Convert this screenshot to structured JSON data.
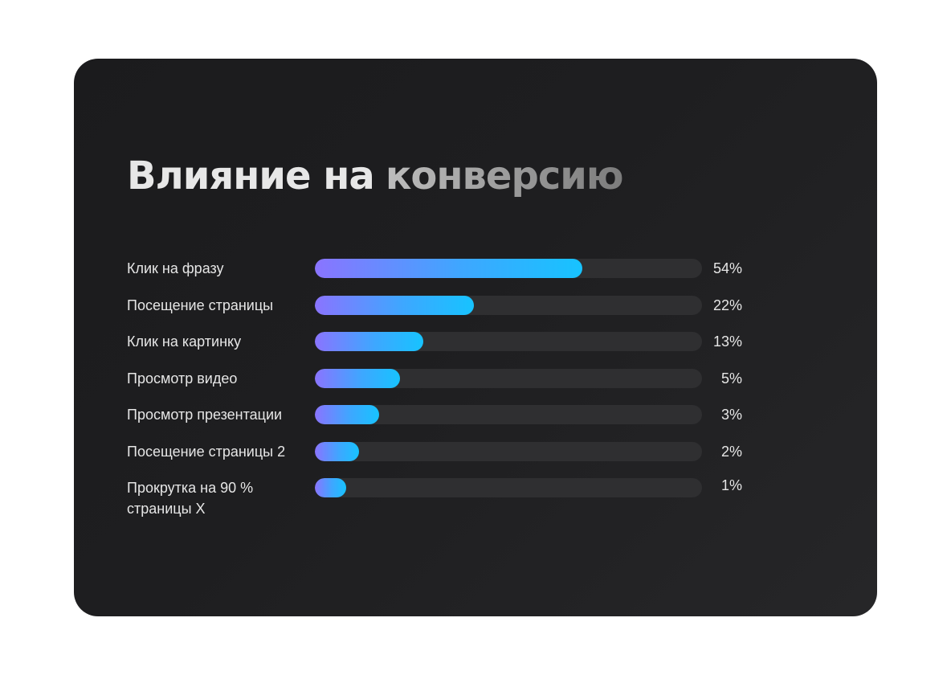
{
  "title": {
    "part1": "Влияние на",
    "part2": "конверсию"
  },
  "chart_data": {
    "type": "bar",
    "orientation": "horizontal",
    "title": "Влияние на  конверсию",
    "categories": [
      "Клик на фразу",
      "Посещение страницы",
      "Клик на картинку",
      "Просмотр видео",
      "Просмотр презентации",
      "Посещение страницы 2",
      "Прокрутка на 90 % страницы X"
    ],
    "label_lines": [
      [
        "Клик на фразу"
      ],
      [
        "Посещение страницы"
      ],
      [
        "Клик на картинку"
      ],
      [
        "Просмотр видео"
      ],
      [
        "Просмотр презентации"
      ],
      [
        "Посещение страницы 2"
      ],
      [
        "Прокрутка на 90 %",
        "страницы X"
      ]
    ],
    "values": [
      54,
      22,
      13,
      5,
      3,
      2,
      1
    ],
    "value_labels": [
      "54%",
      "22%",
      "13%",
      "5%",
      "3%",
      "2%",
      "1%"
    ],
    "fill_fraction": [
      0.69,
      0.41,
      0.28,
      0.22,
      0.165,
      0.115,
      0.08
    ],
    "unit": "%",
    "grid": false,
    "legend": "none",
    "colors": {
      "card_bg": "#1e1e20",
      "track": "#2f2f31",
      "bar_start": "#8a74ff",
      "bar_end": "#17c3ff",
      "text": "#e6e6e6"
    }
  }
}
